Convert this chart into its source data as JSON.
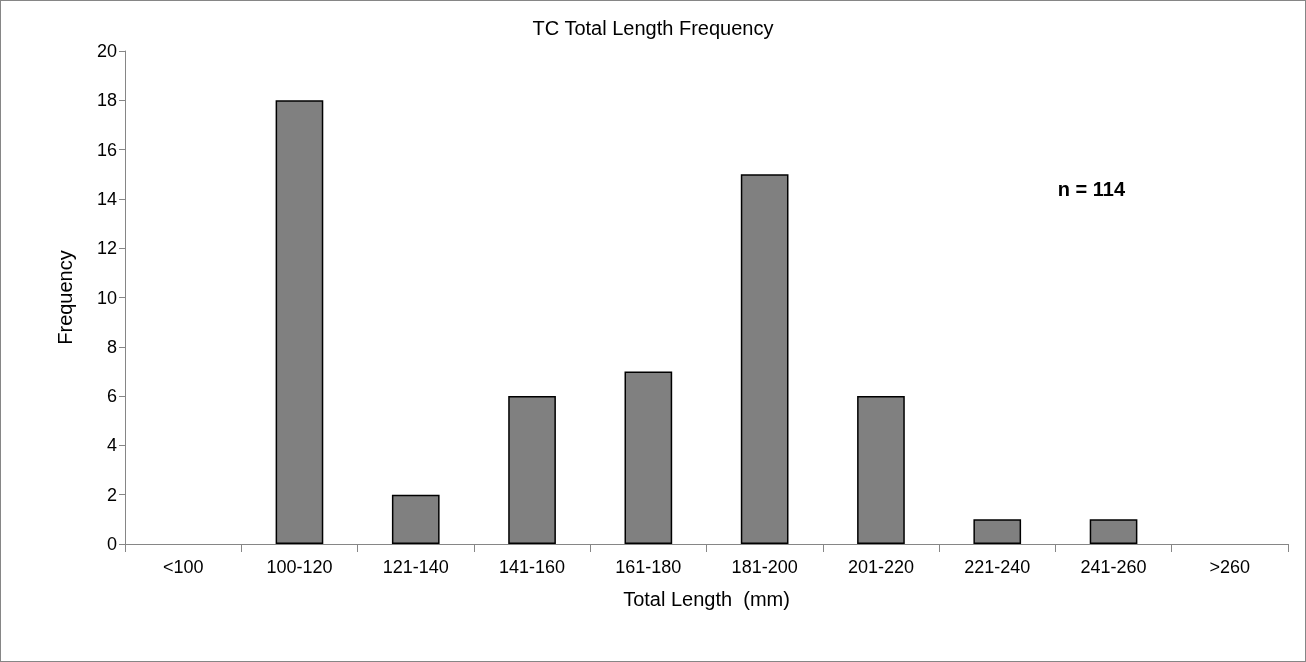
{
  "chart_data": {
    "type": "bar",
    "title": "TC Total Length Frequency",
    "xlabel": "Total Length  (mm)",
    "ylabel": "Frequency",
    "categories": [
      "<100",
      "100-120",
      "121-140",
      "141-160",
      "161-180",
      "181-200",
      "201-220",
      "221-240",
      "241-260",
      ">260"
    ],
    "values": [
      0,
      18,
      2,
      6,
      7,
      15,
      6,
      1,
      1,
      0
    ],
    "color": "#808080",
    "ylim": [
      0,
      20
    ],
    "yticks": [
      0,
      2,
      4,
      6,
      8,
      10,
      12,
      14,
      16,
      18,
      20
    ],
    "grid": false,
    "annotations": [
      "n = 114"
    ]
  }
}
